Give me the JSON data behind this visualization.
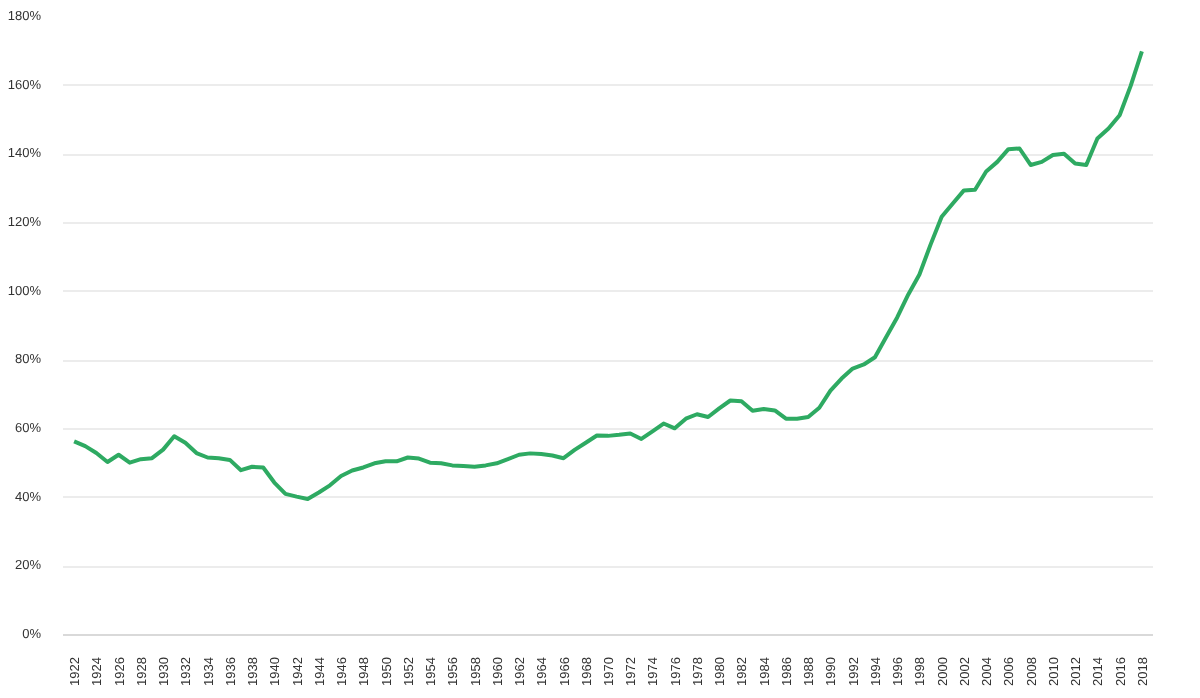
{
  "chart_data": {
    "type": "line",
    "color": "#2eaa62",
    "x": [
      1922,
      1923,
      1924,
      1925,
      1926,
      1927,
      1928,
      1929,
      1930,
      1931,
      1932,
      1933,
      1934,
      1935,
      1936,
      1937,
      1938,
      1939,
      1940,
      1941,
      1942,
      1943,
      1944,
      1945,
      1946,
      1947,
      1948,
      1949,
      1950,
      1951,
      1952,
      1953,
      1954,
      1955,
      1956,
      1957,
      1958,
      1959,
      1960,
      1961,
      1962,
      1963,
      1964,
      1965,
      1966,
      1967,
      1968,
      1969,
      1970,
      1971,
      1972,
      1973,
      1974,
      1975,
      1976,
      1977,
      1978,
      1979,
      1980,
      1981,
      1982,
      1983,
      1984,
      1985,
      1986,
      1987,
      1988,
      1989,
      1990,
      1991,
      1992,
      1993,
      1994,
      1995,
      1996,
      1997,
      1998,
      1999,
      2000,
      2001,
      2002,
      2003,
      2004,
      2005,
      2006,
      2007,
      2008,
      2009,
      2010,
      2011,
      2012,
      2013,
      2014,
      2015,
      2016,
      2017,
      2018
    ],
    "values": [
      56.4,
      55,
      53,
      50.4,
      52.5,
      50.2,
      51.2,
      51.5,
      54,
      57.9,
      56,
      53,
      51.7,
      51.5,
      51,
      48,
      49,
      48.8,
      44.4,
      41.1,
      40.3,
      39.6,
      41.5,
      43.6,
      46.3,
      47.9,
      48.8,
      50,
      50.6,
      50.6,
      51.7,
      51.4,
      50.2,
      50,
      49.4,
      49.2,
      49,
      49.4,
      50,
      51.2,
      52.5,
      52.9,
      52.7,
      52.3,
      51.5,
      53.9,
      56,
      58.1,
      58,
      58.3,
      58.7,
      57.1,
      59.3,
      61.6,
      60.2,
      63,
      64.3,
      63.5,
      66,
      68.3,
      68.1,
      65.3,
      65.8,
      65.4,
      63,
      63,
      63.5,
      66.2,
      71.2,
      74.7,
      77.6,
      78.8,
      80.9,
      86.7,
      92.5,
      99.2,
      105,
      113.7,
      121.8,
      125.7,
      129.5,
      129.7,
      135,
      137.8,
      141.5,
      141.7,
      136.9,
      137.8,
      139.8,
      140.2,
      137.3,
      136.9,
      144.6,
      147.5,
      151.4,
      160,
      170
    ],
    "xlim": [
      1921,
      2019
    ],
    "xticks": [
      1922,
      1924,
      1926,
      1928,
      1930,
      1932,
      1934,
      1936,
      1938,
      1940,
      1942,
      1944,
      1946,
      1948,
      1950,
      1952,
      1954,
      1956,
      1958,
      1960,
      1962,
      1964,
      1966,
      1968,
      1970,
      1972,
      1974,
      1976,
      1978,
      1980,
      1982,
      1984,
      1986,
      1988,
      1990,
      1992,
      1994,
      1996,
      1998,
      2000,
      2002,
      2004,
      2006,
      2008,
      2010,
      2012,
      2014,
      2016,
      2018
    ],
    "ylim": [
      0,
      180
    ],
    "yticks": [
      {
        "value": 0,
        "label": "0%"
      },
      {
        "value": 20,
        "label": "20%"
      },
      {
        "value": 40,
        "label": "40%"
      },
      {
        "value": 60,
        "label": "60%"
      },
      {
        "value": 80,
        "label": "80%"
      },
      {
        "value": 100,
        "label": "100%"
      },
      {
        "value": 120,
        "label": "120%"
      },
      {
        "value": 140,
        "label": "140%"
      },
      {
        "value": 160,
        "label": "160%"
      },
      {
        "value": 180,
        "label": "180%"
      }
    ],
    "grid": "y",
    "marker": "none",
    "line_style": "solid"
  }
}
